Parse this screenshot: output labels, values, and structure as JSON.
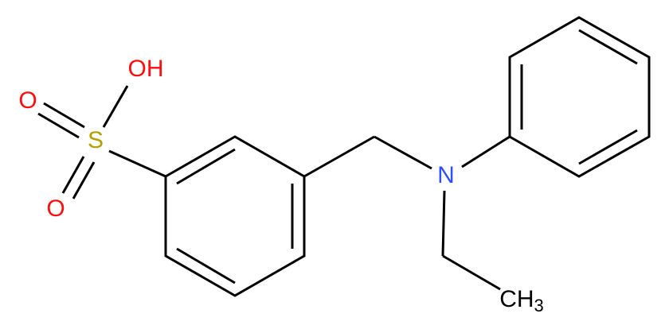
{
  "atoms": [
    {
      "label": "OH"
    },
    {
      "label": "O"
    },
    {
      "label": "S"
    },
    {
      "label": "O"
    },
    {
      "label": "N"
    },
    {
      "label": "CH",
      "subscript": "3"
    }
  ]
}
